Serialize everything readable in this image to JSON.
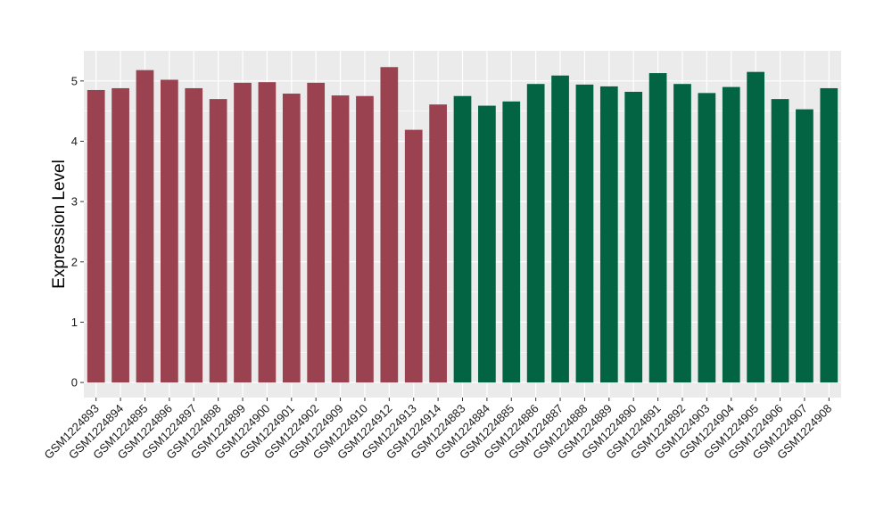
{
  "chart_data": {
    "type": "bar",
    "title": "",
    "xlabel": "",
    "ylabel": "Expression Level",
    "ylim": [
      -0.25,
      5.5
    ],
    "yticks": [
      0,
      1,
      2,
      3,
      4,
      5
    ],
    "grid": true,
    "legend": "none",
    "categories": [
      "GSM1224893",
      "GSM1224894",
      "GSM1224895",
      "GSM1224896",
      "GSM1224897",
      "GSM1224898",
      "GSM1224899",
      "GSM1224900",
      "GSM1224901",
      "GSM1224902",
      "GSM1224909",
      "GSM1224910",
      "GSM1224912",
      "GSM1224913",
      "GSM1224914",
      "GSM1224883",
      "GSM1224884",
      "GSM1224885",
      "GSM1224886",
      "GSM1224887",
      "GSM1224888",
      "GSM1224889",
      "GSM1224890",
      "GSM1224891",
      "GSM1224892",
      "GSM1224903",
      "GSM1224904",
      "GSM1224905",
      "GSM1224906",
      "GSM1224907",
      "GSM1224908"
    ],
    "values": [
      4.85,
      4.88,
      5.18,
      5.02,
      4.88,
      4.7,
      4.97,
      4.98,
      4.79,
      4.97,
      4.76,
      4.75,
      5.23,
      4.19,
      4.61,
      4.75,
      4.59,
      4.66,
      4.95,
      5.09,
      4.94,
      4.91,
      4.82,
      5.13,
      4.95,
      4.8,
      4.9,
      5.15,
      4.7,
      4.53,
      4.88
    ],
    "groups": [
      0,
      0,
      0,
      0,
      0,
      0,
      0,
      0,
      0,
      0,
      0,
      0,
      0,
      0,
      0,
      1,
      1,
      1,
      1,
      1,
      1,
      1,
      1,
      1,
      1,
      1,
      1,
      1,
      1,
      1,
      1
    ],
    "colors": [
      "#9a4250",
      "#026443"
    ],
    "panel_background": "#ebebeb",
    "grid_color": "#ffffff"
  }
}
